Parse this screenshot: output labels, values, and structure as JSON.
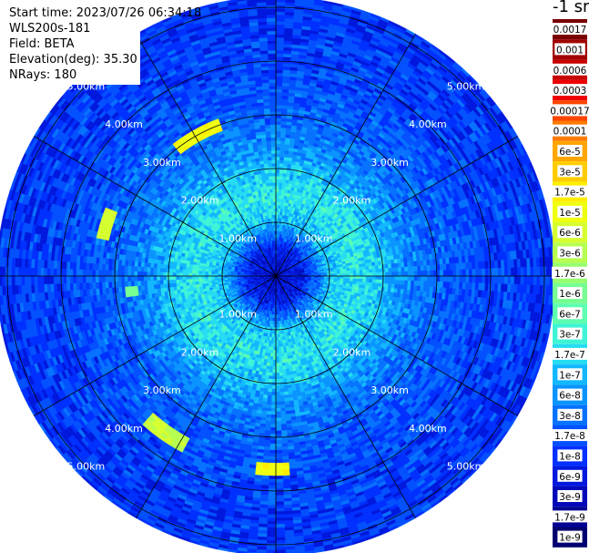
{
  "info": {
    "start_time": "Start time: 2023/07/26 06:34:18",
    "instrument": "WLS200s-181",
    "field": "Field: BETA",
    "elevation": "Elevation(deg): 35.30",
    "nrays": "NRays: 180"
  },
  "colorbar": {
    "unit_label": "-1 sr",
    "labels": [
      "0.0017",
      "0.001",
      "0.0006",
      "0.0003",
      "0.00017",
      "0.0001",
      "6e-5",
      "3e-5",
      "1.7e-5",
      "1e-5",
      "6e-6",
      "3e-6",
      "1.7e-6",
      "1e-6",
      "6e-7",
      "3e-7",
      "1.7e-7",
      "1e-7",
      "6e-8",
      "3e-8",
      "1.7e-8",
      "1e-8",
      "6e-9",
      "3e-9",
      "1.7e-9",
      "1e-9"
    ],
    "colors": [
      "#7a0000",
      "#a00000",
      "#c80000",
      "#ee0000",
      "#ff4400",
      "#ff7a00",
      "#ffa600",
      "#ffcc00",
      "#ffee00",
      "#f0ff10",
      "#d6ff30",
      "#b6ff50",
      "#96ff70",
      "#76ff92",
      "#5cffb0",
      "#3ff4d6",
      "#26dcf2",
      "#12b8ff",
      "#0a94ff",
      "#0672ff",
      "#0350ff",
      "#0030ff",
      "#0018dd",
      "#0008b8",
      "#000094",
      "#000070"
    ]
  },
  "chart_data": {
    "type": "heatmap",
    "projection": "polar (PPI)",
    "range_rings_km": [
      1,
      2,
      3,
      4,
      5
    ],
    "range_ring_labels": [
      "1.00km",
      "2.00km",
      "3.00km",
      "4.00km",
      "5.00km"
    ],
    "max_range_km": 5.2,
    "spoke_angles_deg": [
      0,
      30,
      60,
      90,
      120,
      150,
      180,
      210,
      240,
      270,
      300,
      330
    ],
    "color_scale": "log",
    "color_range": [
      1e-09,
      0.0017
    ],
    "field": "BETA",
    "elevation_deg": 35.3,
    "nrays": 180,
    "radial_profile_log10": [
      {
        "r_km": 0.0,
        "v": -8.3
      },
      {
        "r_km": 0.5,
        "v": -8.1
      },
      {
        "r_km": 1.0,
        "v": -6.9
      },
      {
        "r_km": 1.5,
        "v": -6.6
      },
      {
        "r_km": 2.0,
        "v": -6.9
      },
      {
        "r_km": 2.5,
        "v": -7.3
      },
      {
        "r_km": 3.0,
        "v": -7.55
      },
      {
        "r_km": 4.0,
        "v": -7.8
      },
      {
        "r_km": 5.0,
        "v": -7.9
      }
    ],
    "features": [
      {
        "name": "yellow-arc-northwest",
        "range_km": [
          2.9,
          3.1
        ],
        "azimuth_deg": [
          322,
          340
        ],
        "log10_value": -5.0
      },
      {
        "name": "yellow-arc-west",
        "range_km": [
          3.2,
          3.4
        ],
        "azimuth_deg": [
          283,
          292
        ],
        "log10_value": -5.3
      },
      {
        "name": "green-spot-west",
        "range_km": [
          2.6,
          2.8
        ],
        "azimuth_deg": [
          262,
          266
        ],
        "log10_value": -6.0
      },
      {
        "name": "yellow-arc-southwest",
        "range_km": [
          3.4,
          3.7
        ],
        "azimuth_deg": [
          208,
          222
        ],
        "log10_value": -5.4
      },
      {
        "name": "yellow-arc-south",
        "range_km": [
          3.5,
          3.7
        ],
        "azimuth_deg": [
          176,
          186
        ],
        "log10_value": -5.0
      }
    ]
  }
}
